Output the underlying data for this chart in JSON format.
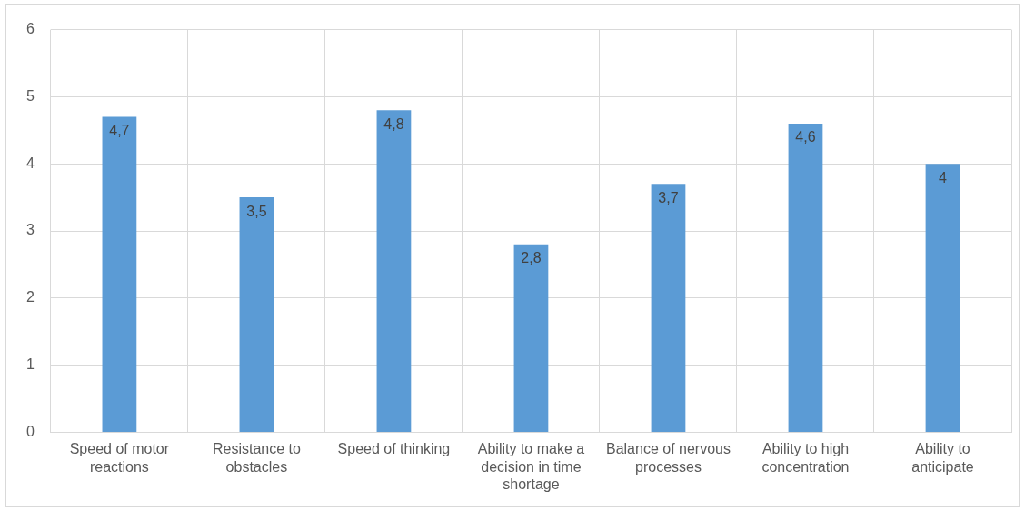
{
  "chart_data": {
    "type": "bar",
    "categories": [
      "Speed of motor reactions",
      "Resistance to obstacles",
      "Speed of thinking",
      "Ability to make a decision in time shortage",
      "Balance of nervous processes",
      "Ability to high concentration",
      "Ability to anticipate"
    ],
    "values": [
      4.7,
      3.5,
      4.8,
      2.8,
      3.7,
      4.6,
      4
    ],
    "value_labels": [
      "4,7",
      "3,5",
      "4,8",
      "2,8",
      "3,7",
      "4,6",
      "4"
    ],
    "color": "#5b9bd5",
    "ylim": [
      0,
      6
    ],
    "yticks": [
      0,
      1,
      2,
      3,
      4,
      5,
      6
    ],
    "grid": true,
    "legend": false
  }
}
